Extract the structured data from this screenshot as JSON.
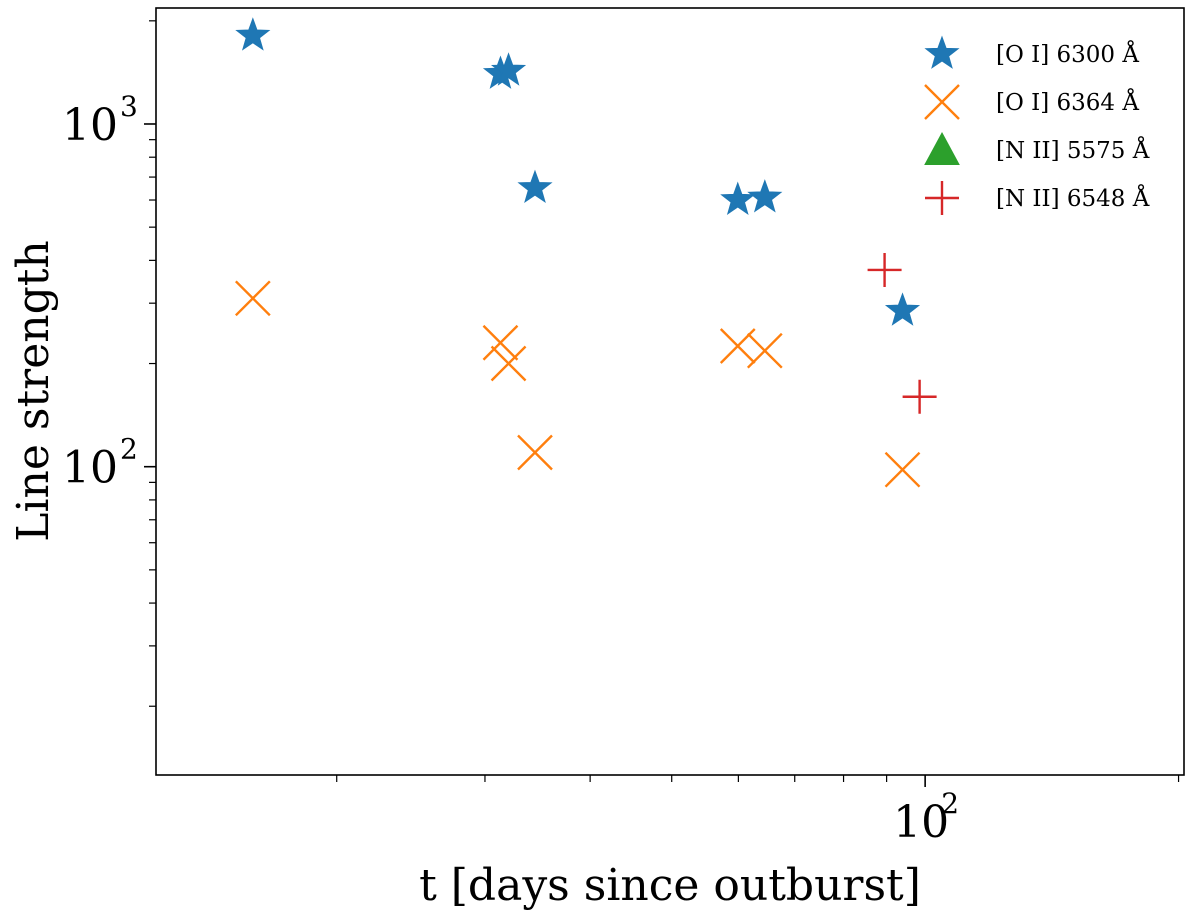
{
  "chart_data": {
    "type": "scatter",
    "xlabel": "t [days since outburst]",
    "ylabel": "Line strength",
    "xscale": "log",
    "yscale": "log",
    "xlim": [
      12.2,
      203
    ],
    "ylim": [
      12.6,
      2180
    ],
    "x_major_ticks": [
      {
        "value": 100,
        "base": "10",
        "exponent": "2"
      }
    ],
    "x_minor_ticks": [
      20,
      30,
      40,
      50,
      60,
      70,
      80,
      90,
      200
    ],
    "y_major_ticks": [
      {
        "value": 100,
        "base": "10",
        "exponent": "2"
      },
      {
        "value": 1000,
        "base": "10",
        "exponent": "3"
      }
    ],
    "y_minor_ticks": [
      20,
      30,
      40,
      50,
      60,
      70,
      80,
      90,
      200,
      300,
      400,
      500,
      600,
      700,
      800,
      900,
      2000
    ],
    "grid": false,
    "legend_position": "top-right",
    "series": [
      {
        "name": "[O I] 6300 Å",
        "marker": "star",
        "color": "#1f77b4",
        "points": [
          [
            15.9,
            1810
          ],
          [
            31.3,
            1400
          ],
          [
            32.0,
            1430
          ],
          [
            34.4,
            650
          ],
          [
            59.9,
            600
          ],
          [
            64.5,
            610
          ],
          [
            94.0,
            285
          ]
        ]
      },
      {
        "name": "[O I] 6364 Å",
        "marker": "x",
        "color": "#ff7f0e",
        "points": [
          [
            15.9,
            310
          ],
          [
            31.3,
            230
          ],
          [
            32.0,
            200
          ],
          [
            34.4,
            110
          ],
          [
            59.9,
            225
          ],
          [
            64.5,
            218
          ],
          [
            94.0,
            98
          ]
        ]
      },
      {
        "name": "[N II] 5575 Å",
        "marker": "triangle",
        "color": "#2ca02c",
        "points": []
      },
      {
        "name": "[N II] 6548 Å",
        "marker": "plus",
        "color": "#d62728",
        "points": [
          [
            89.5,
            375
          ],
          [
            98.5,
            160
          ]
        ]
      }
    ]
  }
}
